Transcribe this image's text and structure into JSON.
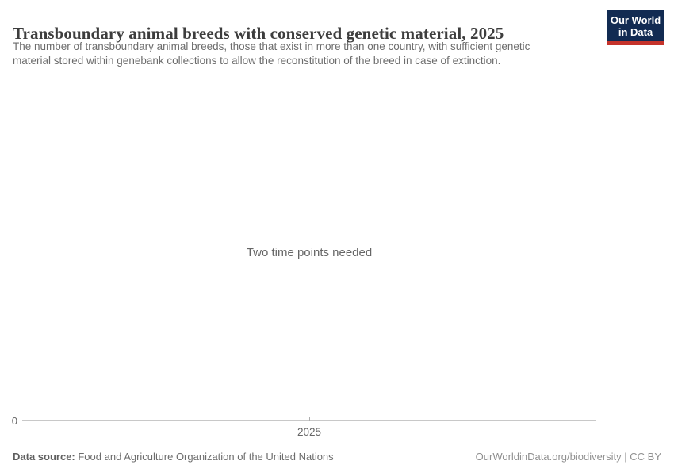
{
  "header": {
    "title": "Transboundary animal breeds with conserved genetic material, 2025",
    "subtitle_lines": [
      "The number of transboundary animal breeds, those that exist in more than one country, with sufficient genetic",
      "material stored within genebank collections to allow the reconstitution of the breed in case of extinction."
    ],
    "logo": {
      "line1": "Our World",
      "line2": "in Data",
      "bg_color": "#122b52",
      "accent_color": "#c5332b"
    }
  },
  "chart": {
    "empty_message": "Two time points needed",
    "y_axis": {
      "tick": "0"
    },
    "x_axis": {
      "tick": "2025"
    }
  },
  "footer": {
    "source_label": "Data source:",
    "source_value": " Food and Agriculture Organization of the United Nations",
    "attribution": "OurWorldinData.org/biodiversity | CC BY"
  },
  "chart_data": {
    "type": "line",
    "title": "Transboundary animal breeds with conserved genetic material, 2025",
    "x": [],
    "series": [],
    "message": "Two time points needed",
    "x_ticks": [
      "2025"
    ],
    "y_ticks": [
      "0"
    ],
    "xlabel": "",
    "ylabel": "",
    "grid": false,
    "legend": "none",
    "note": "No data series plotted; chart placeholder states two time points are needed."
  }
}
